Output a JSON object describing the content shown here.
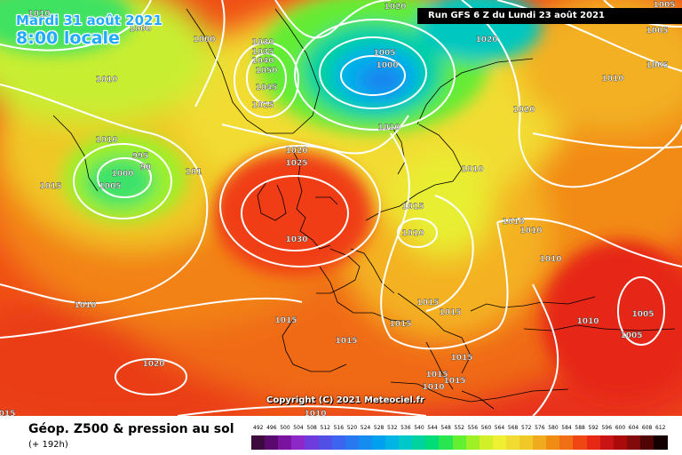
{
  "header": {
    "date": "Mardi 31 août 2021",
    "time_local": "8:00 locale",
    "run": "Run GFS 6 Z du Lundi 23 août 2021",
    "copyright": "Copyright (C) 2021 Meteociel.fr"
  },
  "footer": {
    "title": "Géop. Z500 & pression au sol",
    "forecast": "(+ 192h)"
  },
  "legend": {
    "values": [
      "492",
      "496",
      "500",
      "504",
      "508",
      "512",
      "516",
      "520",
      "524",
      "528",
      "532",
      "536",
      "540",
      "544",
      "548",
      "552",
      "556",
      "560",
      "564",
      "568",
      "572",
      "576",
      "580",
      "584",
      "588",
      "592",
      "596",
      "600",
      "604",
      "608",
      "612"
    ],
    "colors": [
      "#3c0a3c",
      "#5a0a6e",
      "#7a14a0",
      "#8c28c8",
      "#6e3cdc",
      "#5050e6",
      "#3c64f0",
      "#2878f0",
      "#148cf0",
      "#00a0f0",
      "#00b4e6",
      "#00c8c8",
      "#00d2a0",
      "#00dc78",
      "#28e650",
      "#64f032",
      "#a0f028",
      "#d2f028",
      "#f0f032",
      "#f0dc32",
      "#f0c828",
      "#f0aa1e",
      "#f08c14",
      "#f06e14",
      "#f04614",
      "#e62814",
      "#c81414",
      "#aa0a0a",
      "#820a0a",
      "#500505",
      "#140000"
    ]
  },
  "labels": [
    {
      "text": "1010"
    },
    {
      "text": "1000"
    },
    {
      "text": "1020"
    },
    {
      "text": "1005"
    },
    {
      "text": "1020"
    },
    {
      "text": "1005"
    },
    {
      "text": "1000"
    },
    {
      "text": "1010"
    },
    {
      "text": "1005"
    },
    {
      "text": "1030"
    },
    {
      "text": "1035"
    },
    {
      "text": "1040"
    },
    {
      "text": "1050"
    },
    {
      "text": "1045"
    },
    {
      "text": "1025"
    },
    {
      "text": "1005"
    },
    {
      "text": "1000"
    },
    {
      "text": "1010"
    },
    {
      "text": "1020"
    },
    {
      "text": "1010"
    },
    {
      "text": "1020"
    },
    {
      "text": "1025"
    },
    {
      "text": "1015"
    },
    {
      "text": "995"
    },
    {
      "text": "99"
    },
    {
      "text": "1000"
    },
    {
      "text": "1005"
    },
    {
      "text": "101"
    },
    {
      "text": "1010"
    },
    {
      "text": "1015"
    },
    {
      "text": "1010"
    },
    {
      "text": "1030"
    },
    {
      "text": "1010"
    },
    {
      "text": "1010"
    },
    {
      "text": "1010"
    },
    {
      "text": "1010"
    },
    {
      "text": "1015"
    },
    {
      "text": "1015"
    },
    {
      "text": "1015"
    },
    {
      "text": "1015"
    },
    {
      "text": "1015"
    },
    {
      "text": "1010"
    },
    {
      "text": "1005"
    },
    {
      "text": "1005"
    },
    {
      "text": "1020"
    },
    {
      "text": "1015"
    },
    {
      "text": "1015"
    },
    {
      "text": "1015"
    },
    {
      "text": "1010"
    },
    {
      "text": "015"
    },
    {
      "text": "1010"
    },
    {
      "text": "1010"
    }
  ]
}
